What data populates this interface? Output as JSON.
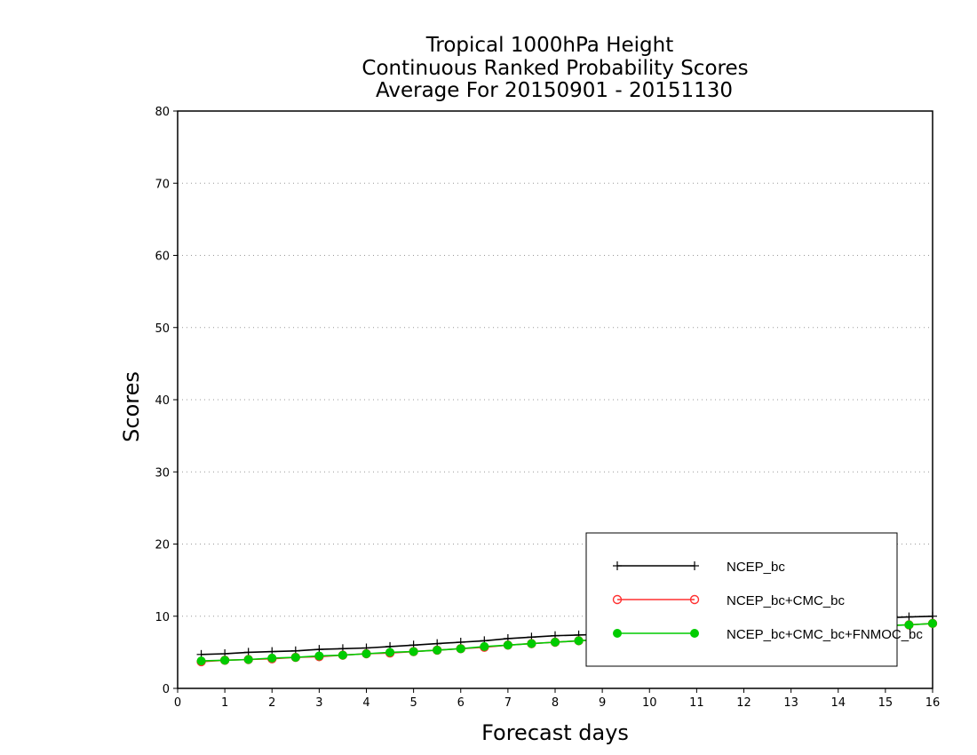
{
  "chart_data": {
    "type": "line",
    "title_lines": [
      "Tropical 1000hPa Height",
      "Continuous Ranked Probability Scores",
      "Average For 20150901 - 20151130"
    ],
    "xlabel": "Forecast days",
    "ylabel": "Scores",
    "xlim": [
      0,
      16
    ],
    "ylim": [
      0,
      80
    ],
    "x_ticks": [
      0,
      1,
      2,
      3,
      4,
      5,
      6,
      7,
      8,
      9,
      10,
      11,
      12,
      13,
      14,
      15,
      16
    ],
    "y_ticks": [
      0,
      10,
      20,
      30,
      40,
      50,
      60,
      70,
      80
    ],
    "grid": "horizontal dotted",
    "legend_position": "bottom-right",
    "x": [
      0.5,
      1.0,
      1.5,
      2.0,
      2.5,
      3.0,
      3.5,
      4.0,
      4.5,
      5.0,
      5.5,
      6.0,
      6.5,
      7.0,
      7.5,
      8.0,
      8.5,
      9.0,
      9.5,
      10.0,
      10.5,
      11.0,
      11.5,
      12.0,
      12.5,
      13.0,
      13.5,
      14.0,
      14.5,
      15.0,
      15.5,
      16.0
    ],
    "series": [
      {
        "name": "NCEP_bc",
        "color": "#000000",
        "marker": "plus",
        "values": [
          4.7,
          4.8,
          5.0,
          5.1,
          5.2,
          5.4,
          5.5,
          5.6,
          5.8,
          6.0,
          6.2,
          6.4,
          6.6,
          6.9,
          7.1,
          7.3,
          7.4,
          7.5,
          7.7,
          7.9,
          8.1,
          8.3,
          8.5,
          8.7,
          8.9,
          9.1,
          9.3,
          9.5,
          9.7,
          9.8,
          9.9,
          10.0
        ]
      },
      {
        "name": "NCEP_bc+CMC_bc",
        "color": "#ff3030",
        "marker": "open-circle",
        "values": [
          3.7,
          3.9,
          4.0,
          4.1,
          4.3,
          4.4,
          4.6,
          4.8,
          4.9,
          5.1,
          5.3,
          5.5,
          5.7,
          6.0,
          6.2,
          6.4,
          6.6,
          6.8,
          7.0,
          7.2,
          7.4,
          7.6,
          7.8,
          8.0,
          8.1,
          8.3,
          8.4,
          8.5,
          8.6,
          8.7,
          8.8,
          9.0
        ]
      },
      {
        "name": "NCEP_bc+CMC_bc+FNMOC_bc",
        "color": "#00cc00",
        "marker": "filled-circle",
        "values": [
          3.8,
          3.9,
          4.0,
          4.2,
          4.3,
          4.5,
          4.6,
          4.8,
          5.0,
          5.1,
          5.3,
          5.5,
          5.8,
          6.0,
          6.2,
          6.4,
          6.6,
          6.8,
          7.0,
          7.2,
          7.4,
          7.6,
          7.8,
          8.0,
          8.2,
          8.3,
          8.4,
          8.5,
          8.6,
          8.7,
          8.8,
          9.0
        ]
      }
    ]
  }
}
